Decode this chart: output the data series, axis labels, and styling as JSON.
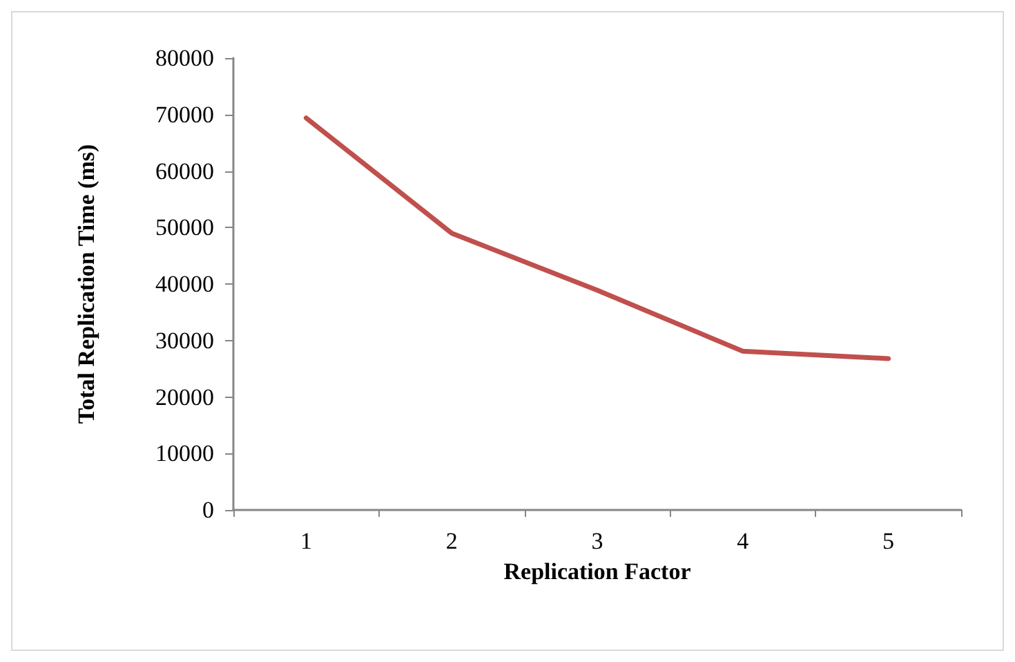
{
  "chart_data": {
    "type": "line",
    "xlabel": "Replication Factor",
    "ylabel": "Total Replication Time (ms)",
    "categories": [
      "1",
      "2",
      "3",
      "4",
      "5"
    ],
    "series": [
      {
        "color": "#c0504d",
        "values": [
          69400,
          49000,
          38900,
          28100,
          26800
        ]
      }
    ],
    "ylim": [
      0,
      80000
    ],
    "yticks": [
      0,
      10000,
      20000,
      30000,
      40000,
      50000,
      60000,
      70000,
      80000
    ],
    "grid": false,
    "marker": "none",
    "line_style": "solid"
  }
}
